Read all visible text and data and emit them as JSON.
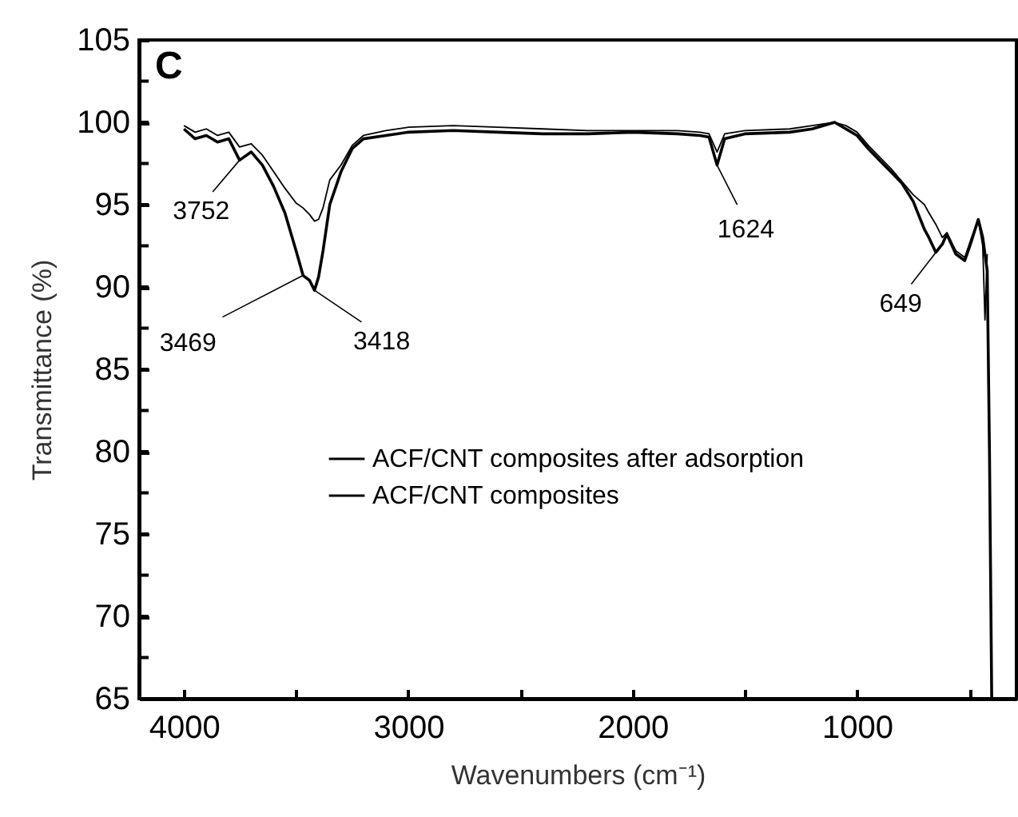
{
  "chart_data": {
    "type": "line",
    "xlabel": "Wavenumbers (cm⁻¹)",
    "ylabel": "Transmittance (%)",
    "xlim": [
      4200,
      290
    ],
    "ylim": [
      65,
      105
    ],
    "xticks": [
      4000,
      {
        "value": 3500,
        "label": null
      },
      3000,
      {
        "value": 2500,
        "label": null
      },
      2000,
      {
        "value": 1500,
        "label": null
      },
      1000,
      {
        "value": 500,
        "label": null
      }
    ],
    "yticks": [
      65,
      {
        "value": 67.5,
        "label": null
      },
      70,
      {
        "value": 72.5,
        "label": null
      },
      75,
      {
        "value": 77.5,
        "label": null
      },
      80,
      {
        "value": 82.5,
        "label": null
      },
      85,
      {
        "value": 87.5,
        "label": null
      },
      90,
      {
        "value": 92.5,
        "label": null
      },
      95,
      {
        "value": 97.5,
        "label": null
      },
      100,
      {
        "value": 102.5,
        "label": null
      },
      105
    ],
    "legend": "bottom left",
    "annotations": [
      "C",
      {
        "text": "3752",
        "x": 3752,
        "y": 97.7
      },
      {
        "text": "3469",
        "x": 3469,
        "y": 90.7
      },
      {
        "text": "3418",
        "x": 3418,
        "y": 89.8
      },
      {
        "text": "1624",
        "x": 1624,
        "y": 97.4
      },
      {
        "text": "649",
        "x": 649,
        "y": 92.1
      }
    ],
    "series": [
      {
        "name": "ACF/CNT  composites after adsorption",
        "color": "#000000",
        "x": [
          4000,
          3950,
          3900,
          3850,
          3800,
          3752,
          3700,
          3650,
          3600,
          3550,
          3500,
          3469,
          3440,
          3418,
          3400,
          3380,
          3350,
          3300,
          3250,
          3200,
          3100,
          3000,
          2800,
          2600,
          2400,
          2200,
          2000,
          1800,
          1700,
          1660,
          1624,
          1590,
          1500,
          1300,
          1200,
          1100,
          1050,
          1000,
          950,
          900,
          850,
          800,
          750,
          700,
          680,
          649,
          620,
          600,
          560,
          520,
          490,
          460,
          440,
          420,
          410,
          400
        ],
        "values": [
          99.6,
          99.0,
          99.2,
          98.8,
          99.0,
          97.7,
          98.2,
          97.4,
          96.1,
          94.5,
          92.2,
          90.7,
          90.4,
          89.8,
          90.6,
          92.2,
          95.0,
          97.0,
          98.4,
          99.0,
          99.2,
          99.4,
          99.5,
          99.4,
          99.3,
          99.3,
          99.4,
          99.3,
          99.2,
          99.1,
          97.4,
          99.0,
          99.3,
          99.4,
          99.6,
          100.0,
          99.6,
          99.2,
          98.4,
          97.7,
          97.0,
          96.3,
          95.2,
          93.5,
          93.0,
          92.1,
          92.6,
          93.2,
          92.0,
          91.6,
          92.8,
          94.1,
          93.0,
          91.0,
          80.0,
          65.0
        ]
      },
      {
        "name": "ACF/CNT composites",
        "color": "#000000",
        "x": [
          4000,
          3950,
          3900,
          3850,
          3800,
          3752,
          3700,
          3650,
          3600,
          3550,
          3500,
          3469,
          3440,
          3418,
          3400,
          3380,
          3350,
          3300,
          3250,
          3200,
          3100,
          3000,
          2800,
          2600,
          2400,
          2200,
          2000,
          1800,
          1700,
          1660,
          1624,
          1590,
          1500,
          1300,
          1200,
          1100,
          1050,
          1000,
          950,
          900,
          850,
          800,
          750,
          700,
          680,
          649,
          620,
          600,
          560,
          520,
          490,
          460,
          440,
          430,
          420
        ],
        "values": [
          99.8,
          99.4,
          99.6,
          99.2,
          99.4,
          98.5,
          98.7,
          98.0,
          97.0,
          96.0,
          95.1,
          94.8,
          94.4,
          94.0,
          94.1,
          94.8,
          96.5,
          97.4,
          98.6,
          99.2,
          99.5,
          99.7,
          99.8,
          99.7,
          99.6,
          99.5,
          99.5,
          99.5,
          99.4,
          99.3,
          98.2,
          99.3,
          99.5,
          99.6,
          99.8,
          100.0,
          99.8,
          99.4,
          98.6,
          97.9,
          97.2,
          96.4,
          95.6,
          95.0,
          94.5,
          93.8,
          93.0,
          93.3,
          92.2,
          91.8,
          93.0,
          94.1,
          92.5,
          88.0,
          92.0
        ]
      }
    ]
  }
}
